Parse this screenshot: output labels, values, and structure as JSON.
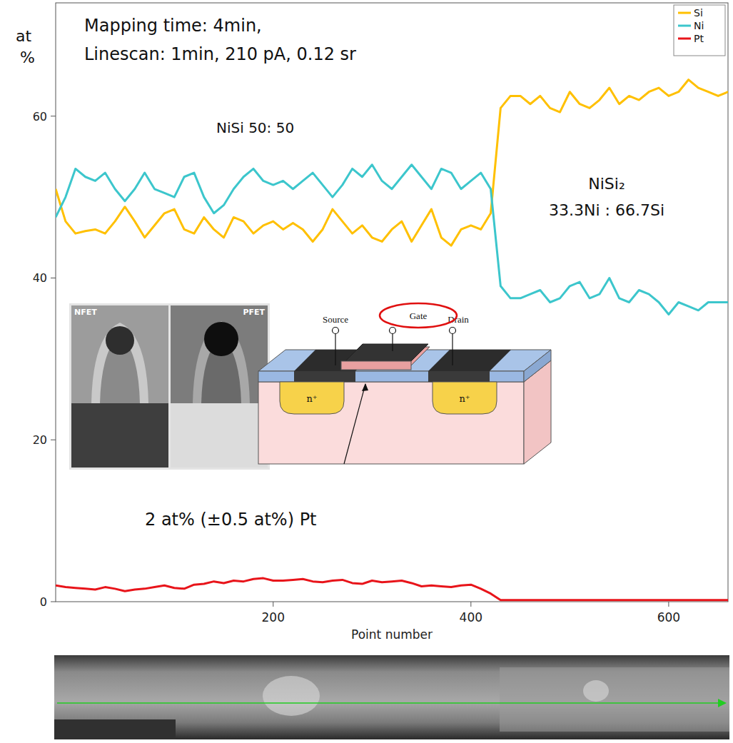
{
  "chart_data": {
    "type": "line",
    "x_label": "Point number",
    "y_label": "at %",
    "xlim": [
      -20,
      660
    ],
    "ylim": [
      0,
      74
    ],
    "xticks": [
      200,
      400,
      600
    ],
    "yticks": [
      0,
      20,
      40,
      60
    ],
    "legend": "upper right",
    "grid": false,
    "x": [
      -20,
      -10,
      0,
      10,
      20,
      30,
      40,
      50,
      60,
      70,
      80,
      90,
      100,
      110,
      120,
      130,
      140,
      150,
      160,
      170,
      180,
      190,
      200,
      210,
      220,
      230,
      240,
      250,
      260,
      270,
      280,
      290,
      300,
      310,
      320,
      330,
      340,
      350,
      360,
      370,
      380,
      390,
      400,
      410,
      420,
      430,
      440,
      450,
      460,
      470,
      480,
      490,
      500,
      510,
      520,
      530,
      540,
      550,
      560,
      570,
      580,
      590,
      600,
      610,
      620,
      630,
      640,
      650,
      660
    ],
    "series": [
      {
        "name": "Si",
        "color": "#ffc000",
        "values": [
          51,
          47,
          45.5,
          45.8,
          46,
          45.5,
          47,
          48.8,
          47,
          45,
          46.5,
          48,
          48.5,
          46,
          45.5,
          47.5,
          46,
          45,
          47.5,
          47,
          45.5,
          46.5,
          47,
          46,
          46.8,
          46,
          44.5,
          46,
          48.5,
          47,
          45.5,
          46.5,
          45,
          44.5,
          46,
          47,
          44.5,
          46.5,
          48.5,
          45,
          44,
          46,
          46.5,
          46,
          48,
          61,
          62.5,
          62.5,
          61.5,
          62.5,
          61,
          60.5,
          63,
          61.5,
          61,
          62,
          63.5,
          61.5,
          62.5,
          62,
          63,
          63.5,
          62.5,
          63,
          64.5,
          63.5,
          63,
          62.5,
          63
        ]
      },
      {
        "name": "Ni",
        "color": "#3cc6cc",
        "values": [
          47.5,
          50,
          53.5,
          52.5,
          52,
          53,
          51,
          49.5,
          51,
          53,
          51,
          50.5,
          50,
          52.5,
          53,
          50,
          48,
          49,
          51,
          52.5,
          53.5,
          52,
          51.5,
          52,
          51,
          52,
          53,
          51.5,
          50,
          51.5,
          53.5,
          52.5,
          54,
          52,
          51,
          52.5,
          54,
          52.5,
          51,
          53.5,
          53,
          51,
          52,
          53,
          51,
          39,
          37.5,
          37.5,
          38,
          38.5,
          37,
          37.5,
          39,
          39.5,
          37.5,
          38,
          40,
          37.5,
          37,
          38.5,
          38,
          37,
          35.5,
          37,
          36.5,
          36,
          37,
          37,
          37
        ]
      },
      {
        "name": "Pt",
        "color": "#e8141a",
        "values": [
          2,
          1.8,
          1.7,
          1.6,
          1.5,
          1.8,
          1.6,
          1.3,
          1.5,
          1.6,
          1.8,
          2,
          1.7,
          1.6,
          2.1,
          2.2,
          2.5,
          2.3,
          2.6,
          2.5,
          2.8,
          2.9,
          2.6,
          2.6,
          2.7,
          2.8,
          2.5,
          2.4,
          2.6,
          2.7,
          2.3,
          2.2,
          2.6,
          2.4,
          2.5,
          2.6,
          2.3,
          1.9,
          2,
          1.9,
          1.8,
          2,
          2.1,
          1.6,
          1,
          0.2,
          0.2,
          0.2,
          0.2,
          0.2,
          0.2,
          0.2,
          0.2,
          0.2,
          0.2,
          0.2,
          0.2,
          0.2,
          0.2,
          0.2,
          0.2,
          0.2,
          0.2,
          0.2,
          0.2,
          0.2,
          0.2,
          0.2,
          0.2
        ]
      }
    ],
    "annotations": [
      "Mapping time: 4min,",
      "Linescan: 1min, 210 pA, 0.12 sr",
      "NiSi 50: 50",
      "NiSi₂",
      "33.3Ni : 66.7Si",
      "2 at% (±0.5 at%) Pt"
    ],
    "insets": {
      "micrograph_labels": [
        "NFET",
        "PFET"
      ],
      "device_labels": [
        "Source",
        "Gate",
        "Drain"
      ],
      "doping_labels": [
        "n⁺",
        "n⁺"
      ]
    }
  }
}
